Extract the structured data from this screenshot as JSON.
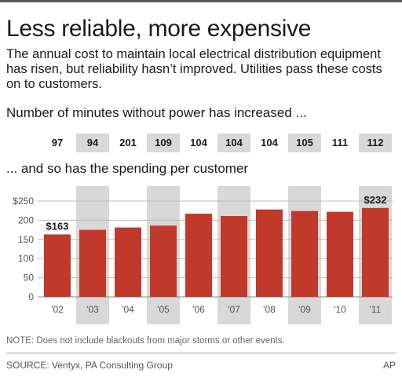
{
  "title": "Less reliable, more expensive",
  "subtitle": "The annual cost to maintain local electrical distribution equipment has risen, but reliability hasn’t improved. Utilities pass these costs on to customers.",
  "minutes_heading": "Number of minutes without power has increased ...",
  "spending_heading": "... and so has the spending per customer",
  "note": "NOTE: Does not include blackouts from major storms or other events.",
  "source": "SOURCE: Ventyx, PA Consulting Group",
  "credit": "AP",
  "colors": {
    "bar": "#c0392b",
    "shade": "#d8d8d8",
    "grid": "#bdbdbd",
    "text": "#1a1a1a"
  },
  "chart_data": [
    {
      "type": "table",
      "title": "Number of minutes without power has increased ...",
      "categories": [
        "'02",
        "'03",
        "'04",
        "'05",
        "'06",
        "'07",
        "'08",
        "'09",
        "'10",
        "'11"
      ],
      "values": [
        97,
        94,
        201,
        109,
        104,
        104,
        104,
        105,
        111,
        112
      ]
    },
    {
      "type": "bar",
      "title": "... and so has the spending per customer",
      "categories": [
        "'02",
        "'03",
        "'04",
        "'05",
        "'06",
        "'07",
        "'08",
        "'09",
        "'10",
        "'11"
      ],
      "values": [
        163,
        175,
        181,
        186,
        217,
        211,
        228,
        224,
        222,
        232
      ],
      "ylim": [
        0,
        250
      ],
      "yticks": [
        0,
        50,
        100,
        150,
        200,
        250
      ],
      "ytick_labels": [
        "0",
        "50",
        "100",
        "150",
        "200",
        "$250"
      ],
      "data_labels": [
        {
          "index": 0,
          "text": "$163"
        },
        {
          "index": 9,
          "text": "$232"
        }
      ],
      "shaded_categories": [
        "'03",
        "'05",
        "'07",
        "'09",
        "'11"
      ],
      "grid": true,
      "xlabel": "",
      "ylabel": ""
    }
  ]
}
